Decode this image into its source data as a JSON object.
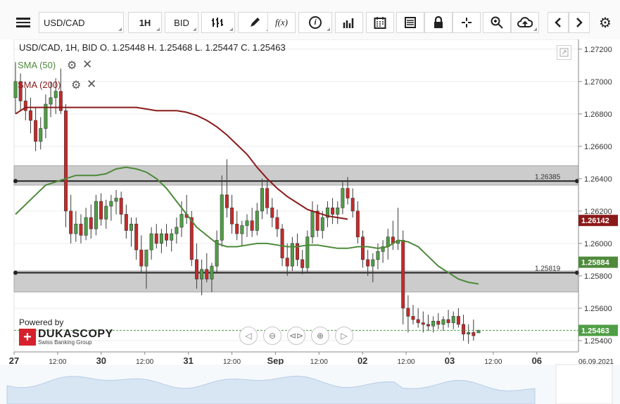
{
  "toolbar": {
    "symbol": "USD/CAD",
    "timeframe": "1H",
    "side": "BID",
    "fx_label": "f(x)",
    "info_label": "i"
  },
  "legend": {
    "ohlc": "USD/CAD, 1H, BID    O. 1.25448 H. 1.25468 L. 1.25447 C. 1.25463",
    "sma50": "SMA (50)",
    "sma200": "SMA (200)"
  },
  "branding": {
    "powered_by": "Powered by",
    "name": "DUKASCOPY",
    "tagline": "Swiss Banking Group"
  },
  "colors": {
    "sma50": "#4e8a3a",
    "sma200": "#8b1a1a",
    "bull": "#4f9e45",
    "bear": "#c62a2a",
    "zone": "#c7c7c7",
    "price_tag": "#4f9e45"
  },
  "chart_data": {
    "type": "candlestick",
    "symbol": "USD/CAD",
    "interval": "1H",
    "ylim": [
      1.2533,
      1.2726
    ],
    "yticks": [
      "1.27200",
      "1.27000",
      "1.26800",
      "1.26600",
      "1.26400",
      "1.26200",
      "1.26000",
      "1.25800",
      "1.25600",
      "1.25400"
    ],
    "xticks": [
      "27",
      "12:00",
      "30",
      "12:00",
      "31",
      "12:00",
      "Sep",
      "12:00",
      "02",
      "12:00",
      "03",
      "12:00",
      "06"
    ],
    "date_label": "06.09.2021",
    "levels": [
      {
        "value": 1.26385,
        "label": "1.26385",
        "zone": [
          1.2636,
          1.2648
        ]
      },
      {
        "value": 1.25819,
        "label": "1.25819",
        "zone": [
          1.257,
          1.2583
        ]
      }
    ],
    "price_labels": [
      {
        "name": "SMA (200)",
        "value": "1.26142"
      },
      {
        "name": "SMA (50)",
        "value": "1.25884"
      },
      {
        "name": "Last",
        "value": "1.25463"
      }
    ],
    "ohlc": [
      [
        1.269,
        1.2712,
        1.268,
        1.27
      ],
      [
        1.27,
        1.2705,
        1.2682,
        1.2688
      ],
      [
        1.2688,
        1.2696,
        1.2676,
        1.2682
      ],
      [
        1.2682,
        1.269,
        1.2668,
        1.2676
      ],
      [
        1.2676,
        1.2684,
        1.2657,
        1.2663
      ],
      [
        1.2663,
        1.2678,
        1.2658,
        1.2671
      ],
      [
        1.2671,
        1.2692,
        1.2665,
        1.2686
      ],
      [
        1.2686,
        1.27,
        1.2678,
        1.269
      ],
      [
        1.269,
        1.2702,
        1.268,
        1.2694
      ],
      [
        1.2694,
        1.2708,
        1.268,
        1.2682
      ],
      [
        1.2682,
        1.2686,
        1.261,
        1.262
      ],
      [
        1.262,
        1.263,
        1.26,
        1.2606
      ],
      [
        1.2606,
        1.262,
        1.2601,
        1.2612
      ],
      [
        1.2612,
        1.2618,
        1.26,
        1.2605
      ],
      [
        1.2605,
        1.2622,
        1.2602,
        1.2616
      ],
      [
        1.2616,
        1.2624,
        1.2603,
        1.2609
      ],
      [
        1.2609,
        1.263,
        1.2605,
        1.2626
      ],
      [
        1.2626,
        1.2631,
        1.2611,
        1.2615
      ],
      [
        1.2615,
        1.2627,
        1.2609,
        1.2623
      ],
      [
        1.2623,
        1.263,
        1.2614,
        1.2626
      ],
      [
        1.2626,
        1.2633,
        1.2618,
        1.2628
      ],
      [
        1.2628,
        1.2632,
        1.2612,
        1.2618
      ],
      [
        1.2618,
        1.2624,
        1.2603,
        1.2608
      ],
      [
        1.2608,
        1.2616,
        1.2598,
        1.2612
      ],
      [
        1.2612,
        1.2616,
        1.259,
        1.2596
      ],
      [
        1.2596,
        1.2605,
        1.2582,
        1.2586
      ],
      [
        1.2586,
        1.2596,
        1.2572,
        1.2596
      ],
      [
        1.2596,
        1.261,
        1.259,
        1.2606
      ],
      [
        1.2606,
        1.2612,
        1.2597,
        1.26
      ],
      [
        1.26,
        1.2609,
        1.2594,
        1.2606
      ],
      [
        1.2606,
        1.2612,
        1.2598,
        1.2602
      ],
      [
        1.2602,
        1.2609,
        1.2595,
        1.2606
      ],
      [
        1.2606,
        1.2616,
        1.26,
        1.261
      ],
      [
        1.261,
        1.2626,
        1.2604,
        1.2618
      ],
      [
        1.2618,
        1.263,
        1.2612,
        1.2616
      ],
      [
        1.2616,
        1.262,
        1.2586,
        1.259
      ],
      [
        1.259,
        1.26,
        1.2572,
        1.2578
      ],
      [
        1.2578,
        1.259,
        1.2568,
        1.2584
      ],
      [
        1.2584,
        1.2594,
        1.2576,
        1.2578
      ],
      [
        1.2578,
        1.2588,
        1.257,
        1.2586
      ],
      [
        1.2586,
        1.2608,
        1.2582,
        1.2602
      ],
      [
        1.2602,
        1.2642,
        1.2598,
        1.263
      ],
      [
        1.263,
        1.2652,
        1.2616,
        1.2622
      ],
      [
        1.2622,
        1.263,
        1.2606,
        1.2612
      ],
      [
        1.2612,
        1.262,
        1.2602,
        1.2606
      ],
      [
        1.2606,
        1.2614,
        1.2598,
        1.2611
      ],
      [
        1.2611,
        1.2618,
        1.2604,
        1.2614
      ],
      [
        1.2614,
        1.2622,
        1.2604,
        1.2608
      ],
      [
        1.2608,
        1.2625,
        1.2605,
        1.262
      ],
      [
        1.262,
        1.264,
        1.2615,
        1.2634
      ],
      [
        1.2634,
        1.2638,
        1.2618,
        1.2622
      ],
      [
        1.2622,
        1.2628,
        1.261,
        1.2616
      ],
      [
        1.2616,
        1.2621,
        1.2604,
        1.2609
      ],
      [
        1.2609,
        1.2612,
        1.2586,
        1.2591
      ],
      [
        1.2591,
        1.26,
        1.258,
        1.2586
      ],
      [
        1.2586,
        1.2604,
        1.2583,
        1.26
      ],
      [
        1.26,
        1.2606,
        1.2586,
        1.259
      ],
      [
        1.259,
        1.2596,
        1.2581,
        1.2585
      ],
      [
        1.2585,
        1.2608,
        1.2582,
        1.2604
      ],
      [
        1.2604,
        1.2626,
        1.26,
        1.262
      ],
      [
        1.262,
        1.2624,
        1.2604,
        1.2608
      ],
      [
        1.2608,
        1.262,
        1.2603,
        1.2616
      ],
      [
        1.2616,
        1.2626,
        1.261,
        1.2622
      ],
      [
        1.2622,
        1.2628,
        1.2612,
        1.2618
      ],
      [
        1.2618,
        1.2626,
        1.2612,
        1.2622
      ],
      [
        1.2622,
        1.2638,
        1.2618,
        1.2634
      ],
      [
        1.2634,
        1.2641,
        1.2624,
        1.2628
      ],
      [
        1.2628,
        1.2634,
        1.2616,
        1.262
      ],
      [
        1.262,
        1.2626,
        1.26,
        1.2604
      ],
      [
        1.2604,
        1.2608,
        1.2585,
        1.259
      ],
      [
        1.259,
        1.2596,
        1.258,
        1.2586
      ],
      [
        1.2586,
        1.2594,
        1.2576,
        1.259
      ],
      [
        1.259,
        1.26,
        1.2584,
        1.2595
      ],
      [
        1.2595,
        1.2602,
        1.2588,
        1.2598
      ],
      [
        1.2598,
        1.2609,
        1.259,
        1.2604
      ],
      [
        1.2604,
        1.2614,
        1.2596,
        1.26
      ],
      [
        1.26,
        1.2622,
        1.2596,
        1.2602
      ],
      [
        1.2602,
        1.2608,
        1.255,
        1.256
      ],
      [
        1.256,
        1.2568,
        1.2545,
        1.2555
      ],
      [
        1.2555,
        1.2562,
        1.255,
        1.2553
      ],
      [
        1.2553,
        1.256,
        1.2548,
        1.2551
      ],
      [
        1.2551,
        1.2558,
        1.2545,
        1.255
      ],
      [
        1.255,
        1.2556,
        1.2546,
        1.2549
      ],
      [
        1.2549,
        1.2555,
        1.2545,
        1.2552
      ],
      [
        1.2552,
        1.2557,
        1.2547,
        1.255
      ],
      [
        1.255,
        1.2555,
        1.2546,
        1.2553
      ],
      [
        1.2553,
        1.2559,
        1.2548,
        1.2551
      ],
      [
        1.2551,
        1.2558,
        1.2547,
        1.2555
      ],
      [
        1.2555,
        1.256,
        1.2548,
        1.255
      ],
      [
        1.255,
        1.2556,
        1.254,
        1.2544
      ],
      [
        1.2544,
        1.255,
        1.2538,
        1.2545
      ],
      [
        1.2545,
        1.2553,
        1.254,
        1.2543
      ],
      [
        1.25448,
        1.25468,
        1.25447,
        1.25463
      ]
    ],
    "sma50": [
      1.2618,
      1.2624,
      1.263,
      1.2636,
      1.2638,
      1.264,
      1.2642,
      1.2642,
      1.2642,
      1.2643,
      1.2646,
      1.2647,
      1.2646,
      1.2644,
      1.264,
      1.2634,
      1.2626,
      1.2618,
      1.261,
      1.2605,
      1.26,
      1.2598,
      1.2598,
      1.2599,
      1.26,
      1.26,
      1.2599,
      1.2598,
      1.2598,
      1.2599,
      1.2599,
      1.2598,
      1.2597,
      1.2597,
      1.2598,
      1.2598,
      1.2597,
      1.2598,
      1.2602,
      1.2601,
      1.2598,
      1.2592,
      1.2586,
      1.2582,
      1.2578,
      1.2576,
      1.2575
    ],
    "sma200": [
      1.268,
      1.2684,
      1.2684,
      1.2684,
      1.2684,
      1.2684,
      1.2684,
      1.2684,
      1.2684,
      1.2684,
      1.2684,
      1.2684,
      1.2684,
      1.2683,
      1.2682,
      1.2682,
      1.2682,
      1.2681,
      1.2679,
      1.2676,
      1.2672,
      1.2667,
      1.2661,
      1.2655,
      1.2647,
      1.264,
      1.2634,
      1.2629,
      1.2625,
      1.2621,
      1.2619,
      1.2617,
      1.2616,
      1.2615
    ]
  }
}
